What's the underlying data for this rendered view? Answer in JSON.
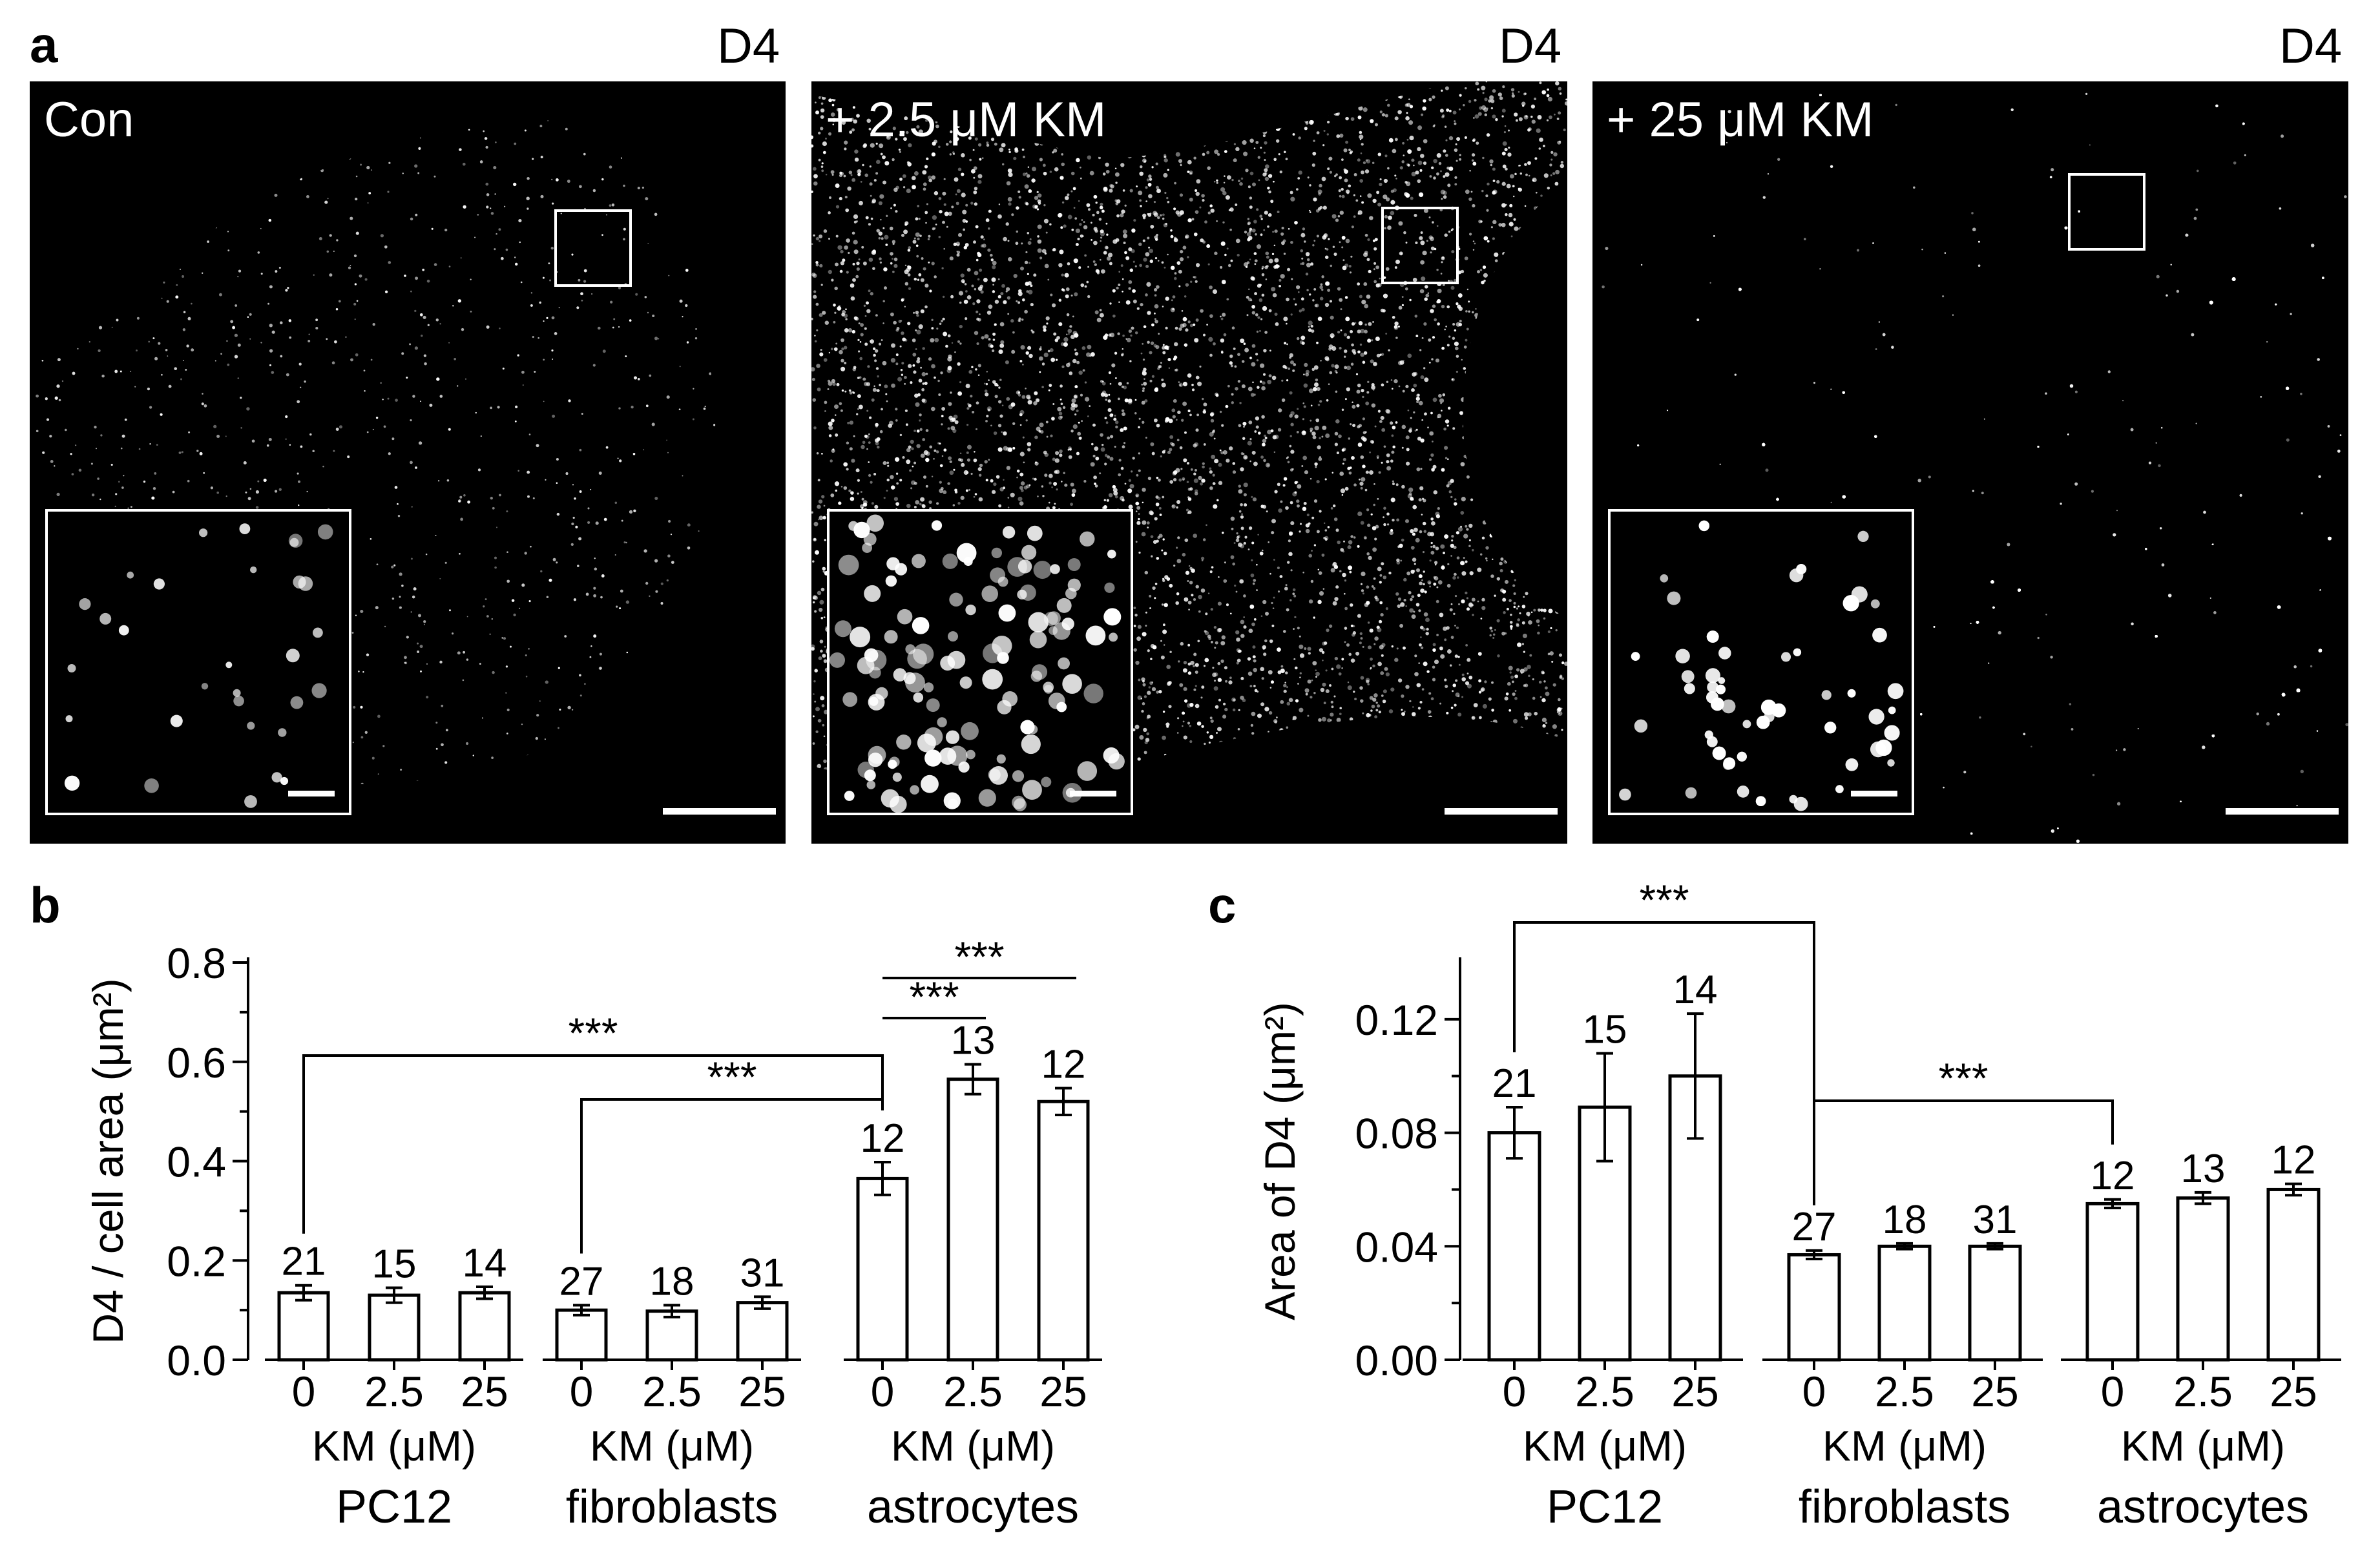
{
  "panel_a": {
    "letter": "a",
    "images": [
      {
        "channel": "D4",
        "condition": "Con"
      },
      {
        "channel": "D4",
        "condition": "+ 2.5 μM KM"
      },
      {
        "channel": "D4",
        "condition": "+ 25 μM KM"
      }
    ]
  },
  "panel_b": {
    "letter": "b"
  },
  "panel_c": {
    "letter": "c"
  },
  "chart_data": [
    {
      "type": "bar",
      "ylabel": "D4 / cell area (μm²)",
      "ylim": [
        0,
        0.8
      ],
      "yticks": [
        "0.0",
        "0.2",
        "0.4",
        "0.6",
        "0.8"
      ],
      "groups": [
        {
          "name": "PC12",
          "xlabel": "KM (μM)",
          "categories": [
            "0",
            "2.5",
            "25"
          ],
          "values": [
            0.135,
            0.13,
            0.135
          ],
          "errors": [
            0.015,
            0.015,
            0.012
          ],
          "n": [
            "21",
            "15",
            "14"
          ]
        },
        {
          "name": "fibroblasts",
          "xlabel": "KM (μM)",
          "categories": [
            "0",
            "2.5",
            "25"
          ],
          "values": [
            0.1,
            0.098,
            0.115
          ],
          "errors": [
            0.01,
            0.012,
            0.012
          ],
          "n": [
            "27",
            "18",
            "31"
          ]
        },
        {
          "name": "astrocytes",
          "xlabel": "KM (μM)",
          "categories": [
            "0",
            "2.5",
            "25"
          ],
          "values": [
            0.365,
            0.565,
            0.52
          ],
          "errors": [
            0.033,
            0.03,
            0.027
          ],
          "n": [
            "12",
            "13",
            "12"
          ]
        }
      ],
      "significance": [
        "***",
        "***",
        "***",
        "***"
      ]
    },
    {
      "type": "bar",
      "ylabel": "Area of D4  (μm²)",
      "ylim": [
        0,
        0.14
      ],
      "yticks": [
        "0.00",
        "0.04",
        "0.08",
        "0.12"
      ],
      "groups": [
        {
          "name": "PC12",
          "xlabel": "KM (μM)",
          "categories": [
            "0",
            "2.5",
            "25"
          ],
          "values": [
            0.08,
            0.089,
            0.1
          ],
          "errors": [
            0.009,
            0.019,
            0.022
          ],
          "n": [
            "21",
            "15",
            "14"
          ]
        },
        {
          "name": "fibroblasts",
          "xlabel": "KM (μM)",
          "categories": [
            "0",
            "2.5",
            "25"
          ],
          "values": [
            0.037,
            0.04,
            0.04
          ],
          "errors": [
            0.0015,
            0.001,
            0.001
          ],
          "n": [
            "27",
            "18",
            "31"
          ]
        },
        {
          "name": "astrocytes",
          "xlabel": "KM (μM)",
          "categories": [
            "0",
            "2.5",
            "25"
          ],
          "values": [
            0.055,
            0.057,
            0.06
          ],
          "errors": [
            0.0015,
            0.002,
            0.002
          ],
          "n": [
            "12",
            "13",
            "12"
          ]
        }
      ],
      "significance": [
        "***",
        "***"
      ]
    }
  ]
}
